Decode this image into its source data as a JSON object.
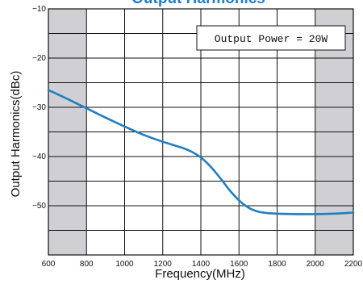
{
  "chart_data": {
    "type": "line",
    "title": "Output Harmonics",
    "xlabel": "Frequency(MHz)",
    "ylabel": "Output Harmonics(dBc)",
    "xlim": [
      600,
      2200
    ],
    "ylim": [
      -60,
      -10
    ],
    "x_ticks": [
      600,
      800,
      1000,
      1200,
      1400,
      1600,
      1800,
      2000,
      2200
    ],
    "y_ticks": [
      -10,
      -20,
      -30,
      -40,
      -50
    ],
    "x_tick_labels": [
      "600",
      "800",
      "1000",
      "1200",
      "1400",
      "1600",
      "1800",
      "2000",
      "2200"
    ],
    "y_tick_labels": [
      "−10",
      "−20",
      "−30",
      "−40",
      "−50"
    ],
    "grid": true,
    "shaded_x_ranges": [
      [
        600,
        800
      ],
      [
        2000,
        2200
      ]
    ],
    "annotation": "Output Power = 20W",
    "colors": {
      "line": "#1f7fc3",
      "title": "#1b7fd0",
      "shade": "#d0d0d4",
      "grid": "#111111"
    },
    "series": [
      {
        "x": [
          600,
          700,
          800,
          900,
          1000,
          1100,
          1200,
          1300,
          1350,
          1400,
          1450,
          1500,
          1550,
          1600,
          1650,
          1700,
          1750,
          1800,
          1900,
          2000,
          2100,
          2200
        ],
        "y": [
          -26.5,
          -28.3,
          -30.2,
          -32.1,
          -33.9,
          -35.6,
          -37.0,
          -38.2,
          -39.0,
          -40.2,
          -42.0,
          -44.3,
          -46.8,
          -48.9,
          -50.4,
          -51.2,
          -51.5,
          -51.6,
          -51.7,
          -51.7,
          -51.6,
          -51.4
        ]
      }
    ]
  }
}
